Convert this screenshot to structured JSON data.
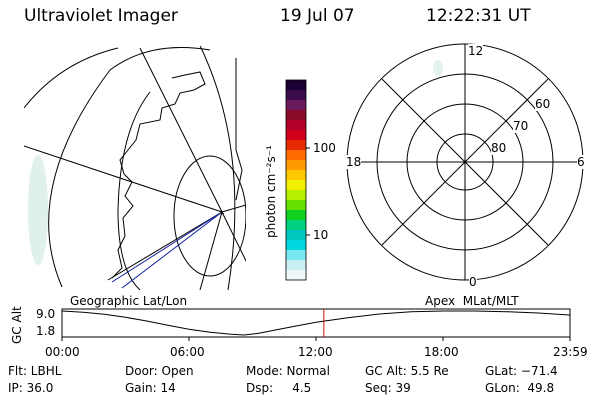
{
  "header": {
    "instrument": "Ultraviolet Imager",
    "date": "19 Jul 07",
    "time": "12:22:31 UT"
  },
  "colorbar": {
    "unit_label": "photon cm⁻²s⁻¹",
    "ticks": [
      "100",
      "10"
    ],
    "colors": [
      "#1a0033",
      "#3a0a4a",
      "#6a1a5a",
      "#8a0a2a",
      "#b0002a",
      "#d0001a",
      "#e82a00",
      "#ff6a00",
      "#ff9a00",
      "#ffc800",
      "#f0f000",
      "#b4f000",
      "#66e000",
      "#10d020",
      "#00d080",
      "#00c8c0",
      "#00d8e0",
      "#7ae8f0",
      "#c8f0f0",
      "#eef8f8"
    ]
  },
  "left_map": {
    "projection_label": "Geographic Lat/Lon",
    "marker": "*"
  },
  "polar_plot": {
    "projection_label": "Apex  MLat/MLT",
    "mlt_labels": {
      "top": "12",
      "left": "18",
      "right": "6",
      "bottom": "0"
    },
    "lat_labels": [
      "60",
      "70",
      "80"
    ]
  },
  "altitude_strip": {
    "axis_label": "GC Alt",
    "y_ticks": [
      "9.0",
      "1.8"
    ],
    "x_ticks": [
      "00:00",
      "06:00",
      "12:00",
      "18:00",
      "23:59"
    ],
    "y_range": [
      1.8,
      9.0
    ],
    "current_time_hours": 12.37,
    "orbit_points": [
      {
        "h": 0,
        "alt": 9.0
      },
      {
        "h": 1,
        "alt": 8.6
      },
      {
        "h": 2,
        "alt": 8.0
      },
      {
        "h": 3,
        "alt": 7.1
      },
      {
        "h": 4,
        "alt": 6.0
      },
      {
        "h": 5,
        "alt": 4.7
      },
      {
        "h": 6,
        "alt": 3.5
      },
      {
        "h": 7,
        "alt": 2.6
      },
      {
        "h": 8,
        "alt": 2.0
      },
      {
        "h": 8.6,
        "alt": 1.8
      },
      {
        "h": 9.3,
        "alt": 2.3
      },
      {
        "h": 10.5,
        "alt": 3.8
      },
      {
        "h": 12,
        "alt": 5.6
      },
      {
        "h": 13.5,
        "alt": 7.0
      },
      {
        "h": 15,
        "alt": 8.1
      },
      {
        "h": 16.5,
        "alt": 8.8
      },
      {
        "h": 18,
        "alt": 9.0
      },
      {
        "h": 19.5,
        "alt": 9.0
      },
      {
        "h": 21,
        "alt": 8.8
      },
      {
        "h": 22.5,
        "alt": 8.4
      },
      {
        "h": 23.98,
        "alt": 7.8
      }
    ]
  },
  "info": {
    "flt": "Flt: LBHL",
    "door": "Door: Open",
    "mode": "Mode: Normal",
    "gc_alt": "GC Alt: 5.5 Re",
    "glat": "GLat: −71.4",
    "ip": "IP: 36.0",
    "gain": "Gain: 14",
    "dsp": "Dsp:     4.5",
    "seq": "Seq: 39",
    "glon": "GLon:  49.8"
  }
}
